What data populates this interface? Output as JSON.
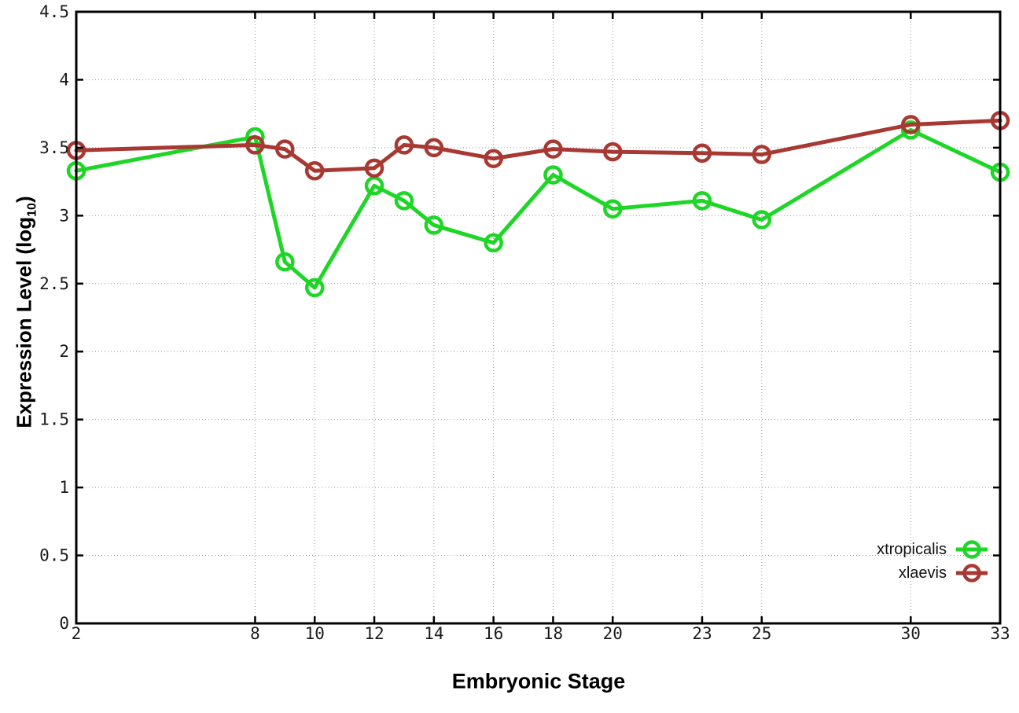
{
  "chart_data": {
    "type": "line",
    "x": [
      2,
      8,
      9,
      10,
      12,
      13,
      14,
      16,
      18,
      20,
      23,
      25,
      30,
      33
    ],
    "series": [
      {
        "name": "xtropicalis",
        "color": "#1dd626",
        "marker": "open-circle",
        "values": [
          3.33,
          3.58,
          2.66,
          2.47,
          3.22,
          3.11,
          2.93,
          2.8,
          3.3,
          3.05,
          3.11,
          2.97,
          3.63,
          3.32
        ]
      },
      {
        "name": "xlaevis",
        "color": "#a83832",
        "marker": "open-circle",
        "values": [
          3.48,
          3.52,
          3.49,
          3.33,
          3.35,
          3.52,
          3.5,
          3.42,
          3.49,
          3.47,
          3.46,
          3.45,
          3.67,
          3.7
        ]
      }
    ],
    "title": "",
    "xlabel": "Embryonic Stage",
    "ylabel": "Expression Level (log10)",
    "ylabel_parts": {
      "prefix": "Expression Level (log",
      "sub": "10",
      "suffix": ")"
    },
    "xlim": [
      2,
      33
    ],
    "ylim": [
      0,
      4.5
    ],
    "xticks": [
      2,
      8,
      10,
      12,
      14,
      16,
      18,
      20,
      23,
      25,
      30,
      33
    ],
    "xtick_labels": [
      "2",
      "8",
      "10",
      "12",
      "14",
      "16",
      "18",
      "20",
      "23",
      "25",
      "30",
      "33"
    ],
    "yticks": [
      0,
      0.5,
      1,
      1.5,
      2,
      2.5,
      3,
      3.5,
      4,
      4.5
    ],
    "ytick_labels": [
      "0",
      "0.5",
      "1",
      "1.5",
      "2",
      "2.5",
      "3",
      "3.5",
      "4",
      "4.5"
    ],
    "grid": true,
    "legend_position": "bottom-right"
  },
  "colors": {
    "background": "#ffffff",
    "axis": "#000000",
    "grid": "#9a9a9a",
    "tick_text": "#1a1a1a",
    "series_green": "#1dd626",
    "series_red": "#a83832"
  }
}
